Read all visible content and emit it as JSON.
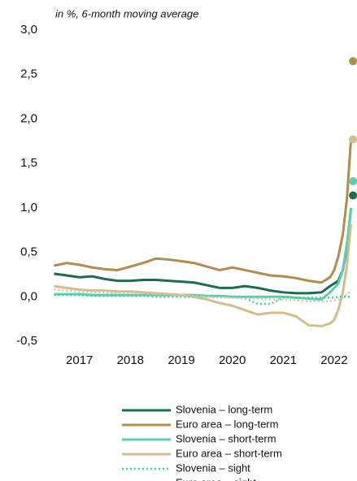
{
  "chart_data": {
    "type": "line",
    "subtitle": "in %, 6-month moving average",
    "x": [
      2016.5,
      2016.75,
      2017.0,
      2017.25,
      2017.5,
      2017.75,
      2018.0,
      2018.25,
      2018.5,
      2018.75,
      2019.0,
      2019.25,
      2019.5,
      2019.75,
      2020.0,
      2020.25,
      2020.5,
      2020.75,
      2021.0,
      2021.25,
      2021.5,
      2021.75,
      2021.92,
      2022.0,
      2022.08,
      2022.17,
      2022.25,
      2022.33
    ],
    "xlim": [
      2016.43,
      2022.4
    ],
    "xticks": [
      2017,
      2018,
      2019,
      2020,
      2021,
      2022
    ],
    "ylim": [
      -0.5,
      3.0
    ],
    "yticks": [
      {
        "value": 3.0,
        "label": "3,0"
      },
      {
        "value": 2.5,
        "label": "2,5"
      },
      {
        "value": 2.0,
        "label": "2,0"
      },
      {
        "value": 1.5,
        "label": "1,5"
      },
      {
        "value": 1.0,
        "label": "1,0"
      },
      {
        "value": 0.5,
        "label": "0,5"
      },
      {
        "value": 0.0,
        "label": "0,0"
      },
      {
        "value": -0.5,
        "label": "-0,5"
      }
    ],
    "grid": false,
    "latest_x": 2022.37,
    "series": [
      {
        "name": "Slovenia – long-term",
        "color": "#1f6b4f",
        "style": "solid",
        "latest": 1.14,
        "values": [
          0.26,
          0.24,
          0.22,
          0.23,
          0.2,
          0.18,
          0.18,
          0.19,
          0.19,
          0.18,
          0.17,
          0.16,
          0.13,
          0.1,
          0.1,
          0.12,
          0.1,
          0.07,
          0.05,
          0.04,
          0.04,
          0.05,
          0.12,
          0.15,
          0.18,
          0.3,
          0.55,
          1.0
        ]
      },
      {
        "name": "Euro area – long-term",
        "color": "#b08d4c",
        "style": "solid",
        "latest": 2.65,
        "values": [
          0.35,
          0.38,
          0.36,
          0.33,
          0.31,
          0.3,
          0.34,
          0.38,
          0.43,
          0.42,
          0.4,
          0.38,
          0.34,
          0.3,
          0.33,
          0.3,
          0.27,
          0.24,
          0.23,
          0.21,
          0.18,
          0.16,
          0.22,
          0.3,
          0.45,
          0.7,
          1.1,
          1.77
        ]
      },
      {
        "name": "Slovenia – short-term",
        "color": "#5ecdb0",
        "style": "solid",
        "latest": 1.3,
        "values": [
          0.03,
          0.03,
          0.03,
          0.02,
          0.02,
          0.02,
          0.02,
          0.02,
          0.02,
          0.02,
          0.02,
          0.02,
          0.01,
          0.01,
          0.0,
          0.0,
          0.0,
          0.0,
          0.0,
          -0.01,
          -0.02,
          -0.03,
          0.05,
          0.1,
          0.15,
          0.3,
          0.6,
          1.0
        ]
      },
      {
        "name": "Euro area – short-term",
        "color": "#d3bd8f",
        "style": "solid",
        "latest": 1.77,
        "values": [
          0.12,
          0.1,
          0.08,
          0.07,
          0.07,
          0.06,
          0.06,
          0.05,
          0.04,
          0.03,
          0.02,
          0.0,
          -0.03,
          -0.07,
          -0.1,
          -0.15,
          -0.2,
          -0.18,
          -0.18,
          -0.22,
          -0.32,
          -0.33,
          -0.3,
          -0.26,
          -0.15,
          0.05,
          0.35,
          0.82
        ]
      },
      {
        "name": "Slovenia – sight",
        "color": "#4ccaa5",
        "style": "dotted",
        "values": [
          0.02,
          0.02,
          0.02,
          0.01,
          0.01,
          0.01,
          0.01,
          0.01,
          0.0,
          0.0,
          0.0,
          0.0,
          0.0,
          0.0,
          0.0,
          -0.02,
          -0.08,
          -0.08,
          -0.01,
          -0.01,
          -0.01,
          -0.01,
          -0.01,
          -0.01,
          0.0,
          0.0,
          0.0,
          0.0
        ]
      },
      {
        "name": "Euro area – sight",
        "color": "#d6c5a3",
        "style": "dotted",
        "values": [
          0.08,
          0.07,
          0.06,
          0.05,
          0.05,
          0.04,
          0.04,
          0.04,
          0.03,
          0.03,
          0.02,
          0.01,
          0.0,
          -0.01,
          -0.01,
          -0.02,
          -0.02,
          -0.03,
          -0.03,
          -0.04,
          -0.05,
          -0.05,
          -0.05,
          -0.04,
          -0.03,
          -0.01,
          0.02,
          0.08
        ]
      }
    ]
  }
}
